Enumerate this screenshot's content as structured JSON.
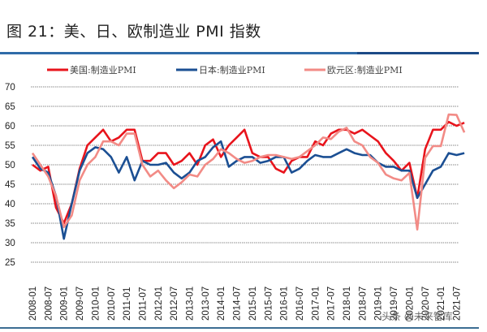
{
  "title": "图 21：美、日、欧制造业 PMI 指数",
  "watermark": "头条 @未来智库",
  "chart_data": {
    "type": "line",
    "title": "图 21：美、日、欧制造业 PMI 指数",
    "xlabel": "",
    "ylabel": "",
    "ylim": [
      25,
      70
    ],
    "yticks": [
      70,
      65,
      60,
      55,
      50,
      45,
      40,
      35,
      30,
      25
    ],
    "xticks": [
      "2008-01",
      "2008-07",
      "2009-01",
      "2009-07",
      "2010-01",
      "2010-07",
      "2011-01",
      "2011-07",
      "2012-01",
      "2012-07",
      "2013-01",
      "2013-07",
      "2014-01",
      "2014-07",
      "2015-01",
      "2015-07",
      "2016-01",
      "2016-07",
      "2017-01",
      "2017-07",
      "2018-01",
      "2018-07",
      "2019-01",
      "2019-07",
      "2020-01",
      "2020-07",
      "2021-01",
      "2021-07"
    ],
    "grid": true,
    "legend_position": "top",
    "x_start": "2008-01",
    "x_step_months": 3,
    "series": [
      {
        "name": "美国:制造业PMI",
        "color": "#e8141c",
        "values": [
          50,
          48.5,
          49.5,
          39,
          35,
          40,
          49,
          55,
          57,
          59,
          56,
          57,
          59,
          59,
          51,
          51,
          53,
          53,
          50,
          51,
          53,
          50,
          55,
          56.5,
          52,
          55,
          57,
          59,
          53,
          52,
          52,
          49,
          48,
          51,
          52,
          52,
          56,
          55,
          58,
          59,
          59,
          58,
          59,
          57.5,
          56,
          53,
          51,
          48.5,
          50.5,
          41.5,
          54,
          59,
          59,
          61,
          60,
          60.8
        ]
      },
      {
        "name": "日本:制造业PMI",
        "color": "#1b4f93",
        "values": [
          52,
          49,
          48,
          42,
          31,
          40,
          48.5,
          53,
          54.5,
          54,
          52,
          48,
          52,
          46,
          51,
          50,
          50,
          50.5,
          48,
          46.5,
          48,
          51,
          52,
          54.5,
          56,
          49.5,
          51,
          52,
          52,
          50.5,
          51,
          52,
          52,
          48,
          49,
          51,
          52.5,
          52,
          52,
          53,
          54,
          53,
          52.5,
          52.5,
          50.5,
          49.5,
          49.5,
          48.5,
          48.5,
          41.5,
          45,
          48.5,
          49.5,
          53,
          52.5,
          53
        ]
      },
      {
        "name": "欧元区:制造业PMI",
        "color": "#f28b86",
        "values": [
          53,
          50,
          47,
          42,
          34,
          37,
          46,
          50,
          52,
          56,
          56,
          55,
          58,
          58,
          50,
          47,
          48.5,
          46,
          44,
          45.5,
          47.5,
          47,
          50,
          51.5,
          54,
          53,
          51.5,
          50.5,
          51,
          52,
          52.5,
          52.5,
          52,
          51.5,
          52,
          53.5,
          55,
          57,
          56.6,
          58.5,
          59.5,
          56,
          55,
          52,
          50.5,
          47.5,
          46.5,
          46,
          47.9,
          33.4,
          51.8,
          54.8,
          54.8,
          62.9,
          62.8,
          58.3
        ]
      }
    ]
  }
}
